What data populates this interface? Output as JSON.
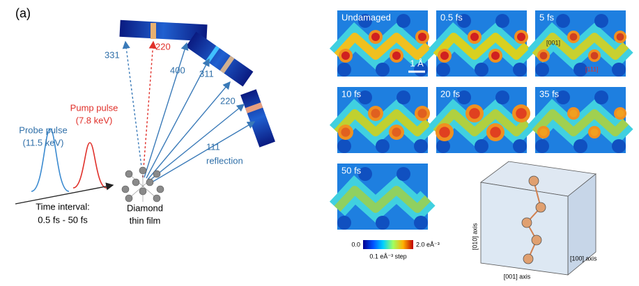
{
  "panel_label": "(a)",
  "reflections": [
    "331",
    "220",
    "400",
    "311",
    "220",
    "111",
    "reflection"
  ],
  "probe": {
    "name": "Probe pulse",
    "energy": "(11.5 keV)"
  },
  "pump": {
    "name": "Pump pulse",
    "energy": "(7.8 keV)"
  },
  "time_interval": {
    "label": "Time interval:",
    "range": "0.5 fs - 50 fs"
  },
  "sample": {
    "line1": "Diamond",
    "line2": "thin film"
  },
  "maps": [
    {
      "label": "Undamaged"
    },
    {
      "label": "0.5 fs"
    },
    {
      "label": "5 fs"
    },
    {
      "label": "10 fs"
    },
    {
      "label": "20 fs"
    },
    {
      "label": "35 fs"
    },
    {
      "label": "50 fs"
    }
  ],
  "scale_bar": "1 Å",
  "directions": [
    "[001]",
    "[111]"
  ],
  "colorbar": {
    "min": "0.0",
    "max": "2.0 eÅ⁻³",
    "step": "0.1 eÅ⁻³ step"
  },
  "axes": [
    "[010] axis",
    "[100] axis",
    "[001] axis"
  ]
}
